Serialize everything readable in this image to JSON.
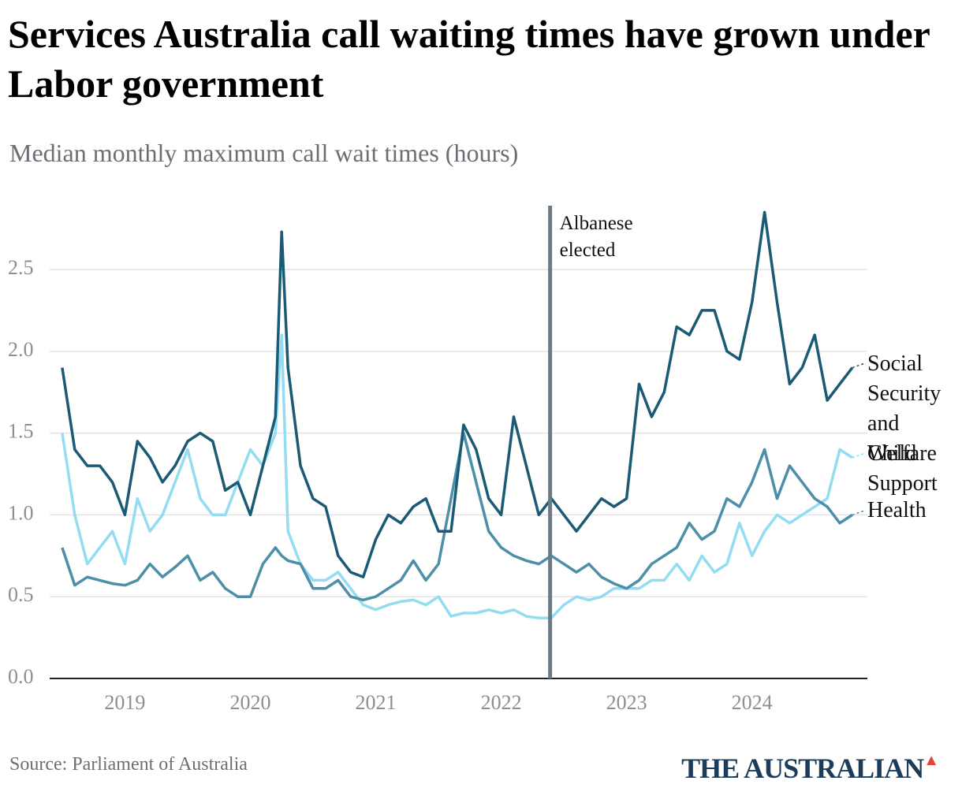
{
  "chart_data": {
    "type": "line",
    "title": "Services Australia call waiting times have grown under Labor government",
    "subtitle": "Median monthly maximum call wait times (hours)",
    "source": "Source: Parliament of Australia",
    "brand": "THE AUSTRALIAN",
    "x": [
      2018.5,
      2018.6,
      2018.7,
      2018.8,
      2018.9,
      2019.0,
      2019.1,
      2019.2,
      2019.3,
      2019.4,
      2019.5,
      2019.6,
      2019.7,
      2019.8,
      2019.9,
      2020.0,
      2020.1,
      2020.2,
      2020.25,
      2020.3,
      2020.4,
      2020.5,
      2020.6,
      2020.7,
      2020.8,
      2020.9,
      2021.0,
      2021.1,
      2021.2,
      2021.3,
      2021.4,
      2021.5,
      2021.6,
      2021.7,
      2021.8,
      2021.9,
      2022.0,
      2022.1,
      2022.2,
      2022.3,
      2022.4,
      2022.5,
      2022.6,
      2022.7,
      2022.8,
      2022.9,
      2023.0,
      2023.1,
      2023.2,
      2023.3,
      2023.4,
      2023.5,
      2023.6,
      2023.7,
      2023.8,
      2023.9,
      2024.0,
      2024.1,
      2024.2,
      2024.3,
      2024.4,
      2024.5,
      2024.6,
      2024.7,
      2024.8
    ],
    "series": [
      {
        "name": "Social Security and Welfare",
        "color": "#1b5a74",
        "values": [
          1.9,
          1.4,
          1.3,
          1.3,
          1.2,
          1.0,
          1.45,
          1.35,
          1.2,
          1.3,
          1.45,
          1.5,
          1.45,
          1.15,
          1.2,
          1.0,
          1.3,
          1.6,
          2.73,
          1.9,
          1.3,
          1.1,
          1.05,
          0.75,
          0.65,
          0.62,
          0.85,
          1.0,
          0.95,
          1.05,
          1.1,
          0.9,
          0.9,
          1.55,
          1.4,
          1.1,
          1.0,
          1.6,
          1.3,
          1.0,
          1.1,
          1.0,
          0.9,
          1.0,
          1.1,
          1.05,
          1.1,
          1.8,
          1.6,
          1.75,
          2.15,
          2.1,
          2.25,
          2.25,
          2.0,
          1.95,
          2.3,
          2.85,
          2.3,
          1.8,
          1.9,
          2.1,
          1.7,
          1.8,
          1.9
        ]
      },
      {
        "name": "Child Support",
        "color": "#93dcf2",
        "values": [
          1.5,
          1.0,
          0.7,
          0.8,
          0.9,
          0.7,
          1.1,
          0.9,
          1.0,
          1.2,
          1.4,
          1.1,
          1.0,
          1.0,
          1.2,
          1.4,
          1.3,
          1.5,
          2.1,
          0.9,
          0.7,
          0.6,
          0.6,
          0.65,
          0.55,
          0.45,
          0.42,
          0.45,
          0.47,
          0.48,
          0.45,
          0.5,
          0.38,
          0.4,
          0.4,
          0.42,
          0.4,
          0.42,
          0.38,
          0.37,
          0.37,
          0.45,
          0.5,
          0.48,
          0.5,
          0.55,
          0.55,
          0.55,
          0.6,
          0.6,
          0.7,
          0.6,
          0.75,
          0.65,
          0.7,
          0.95,
          0.75,
          0.9,
          1.0,
          0.95,
          1.0,
          1.05,
          1.1,
          1.4,
          1.35
        ]
      },
      {
        "name": "Health",
        "color": "#4d8fa8",
        "values": [
          0.8,
          0.57,
          0.62,
          0.6,
          0.58,
          0.57,
          0.6,
          0.7,
          0.62,
          0.68,
          0.75,
          0.6,
          0.65,
          0.55,
          0.5,
          0.5,
          0.7,
          0.8,
          0.75,
          0.72,
          0.7,
          0.55,
          0.55,
          0.6,
          0.5,
          0.48,
          0.5,
          0.55,
          0.6,
          0.72,
          0.6,
          0.7,
          1.1,
          1.5,
          1.2,
          0.9,
          0.8,
          0.75,
          0.72,
          0.7,
          0.75,
          0.7,
          0.65,
          0.7,
          0.62,
          0.58,
          0.55,
          0.6,
          0.7,
          0.75,
          0.8,
          0.95,
          0.85,
          0.9,
          1.1,
          1.05,
          1.2,
          1.4,
          1.1,
          1.3,
          1.2,
          1.1,
          1.05,
          0.95,
          1.0
        ]
      }
    ],
    "xlim": [
      2018.4,
      2024.92
    ],
    "xticks": [
      2019,
      2020,
      2021,
      2022,
      2023,
      2024
    ],
    "ylim": [
      0,
      2.9
    ],
    "yticks": [
      {
        "value": 0,
        "label": "0.0"
      },
      0.5,
      {
        "value": 1,
        "label": "1.0"
      },
      1.5,
      {
        "value": 2,
        "label": "2.0"
      },
      2.5
    ],
    "grid": true,
    "annotations": [
      {
        "x": 2022.39,
        "label": "Albanese elected"
      }
    ]
  }
}
